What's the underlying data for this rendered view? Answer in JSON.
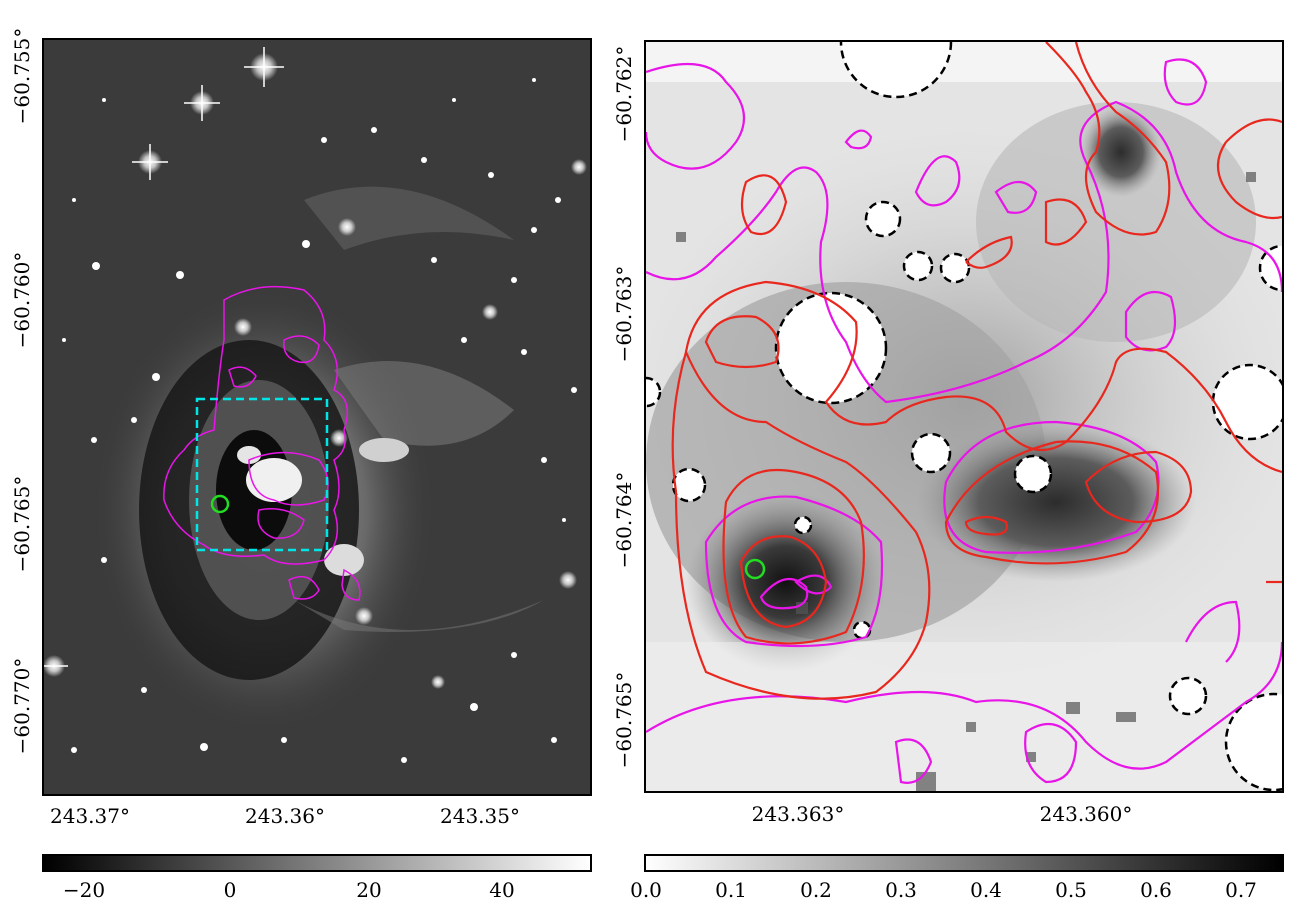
{
  "left_panel": {
    "y_ticks": [
      "−60.755°",
      "−60.760°",
      "−60.765°",
      "−60.770°"
    ],
    "x_ticks": [
      "243.37°",
      "243.36°",
      "243.35°"
    ],
    "colorbar": {
      "ticks": [
        "−20",
        "0",
        "20",
        "40"
      ],
      "range": [
        -23,
        55
      ]
    }
  },
  "right_panel": {
    "y_ticks": [
      "−60.762°",
      "−60.763°",
      "−60.764°",
      "−60.765°"
    ],
    "x_ticks": [
      "243.363°",
      "243.360°"
    ],
    "colorbar": {
      "ticks": [
        "0.0",
        "0.1",
        "0.2",
        "0.3",
        "0.4",
        "0.5",
        "0.6",
        "0.7"
      ],
      "range": [
        0.0,
        0.75
      ]
    }
  },
  "colors": {
    "magenta_contour": "#e815e8",
    "red_contour": "#e8281e",
    "cyan_box": "#00e5e5",
    "green_marker": "#22dd22",
    "mask_circle": "#000000"
  }
}
